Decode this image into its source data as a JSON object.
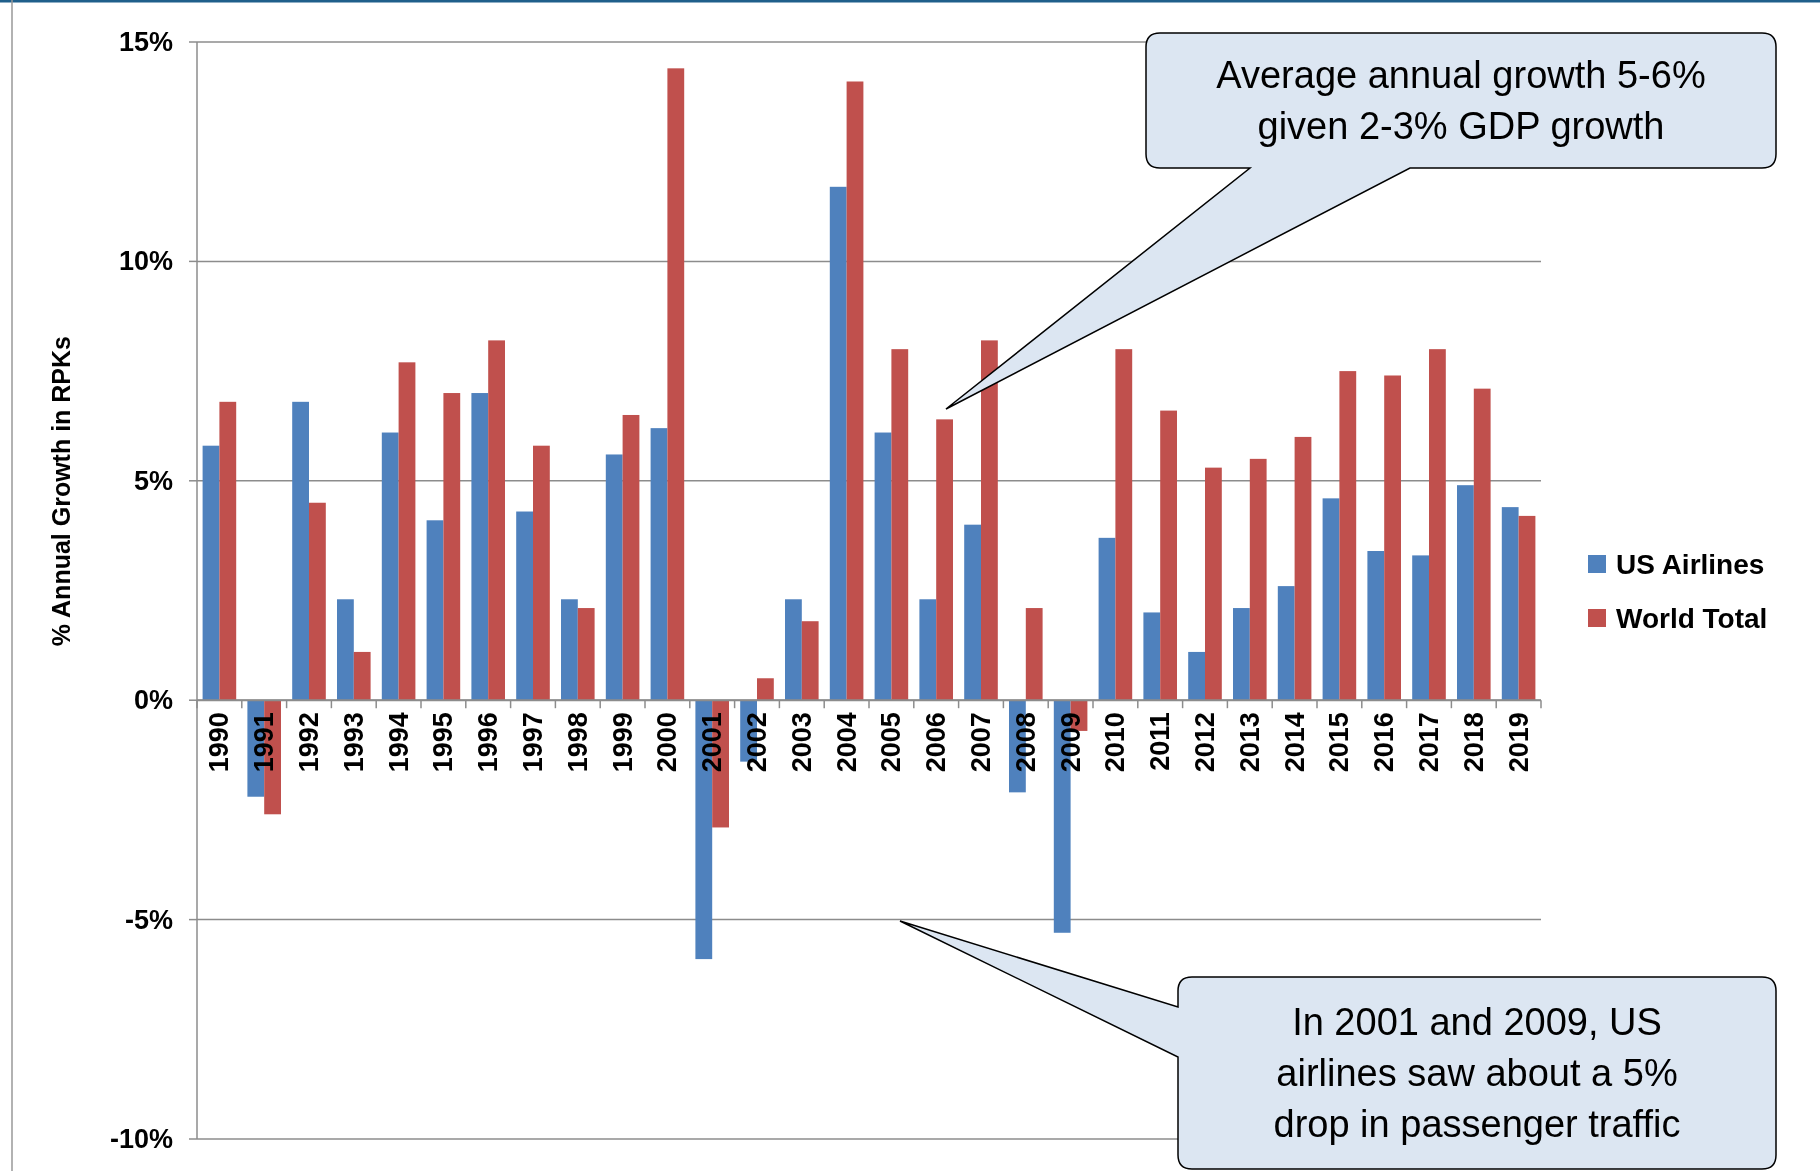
{
  "chart_data": {
    "type": "bar",
    "ylabel": "% Annual Growth in RPKs",
    "categories": [
      "1990",
      "1991",
      "1992",
      "1993",
      "1994",
      "1995",
      "1996",
      "1997",
      "1998",
      "1999",
      "2000",
      "2001",
      "2002",
      "2003",
      "2004",
      "2005",
      "2006",
      "2007",
      "2008",
      "2009",
      "2010",
      "2011",
      "2012",
      "2013",
      "2014",
      "2015",
      "2016",
      "2017",
      "2018",
      "2019"
    ],
    "series": [
      {
        "name": "US Airlines",
        "color": "#4f81bd",
        "values": [
          5.8,
          -2.2,
          6.8,
          2.3,
          6.1,
          4.1,
          7.0,
          4.3,
          2.3,
          5.6,
          6.2,
          -5.9,
          -1.4,
          2.3,
          11.7,
          6.1,
          2.3,
          4.0,
          -2.1,
          -5.3,
          3.7,
          2.0,
          1.1,
          2.1,
          2.6,
          4.6,
          3.4,
          3.3,
          4.9,
          4.4
        ]
      },
      {
        "name": "World Total",
        "color": "#c0504d",
        "values": [
          6.8,
          -2.6,
          4.5,
          1.1,
          7.7,
          7.0,
          8.2,
          5.8,
          2.1,
          6.5,
          14.4,
          -2.9,
          0.5,
          1.8,
          14.1,
          8.0,
          6.4,
          8.2,
          2.1,
          -0.7,
          8.0,
          6.6,
          5.3,
          5.5,
          6.0,
          7.5,
          7.4,
          8.0,
          7.1,
          4.2
        ]
      }
    ],
    "ylim": [
      -10,
      15
    ],
    "yticks": [
      {
        "value": -10,
        "label": "-10%"
      },
      {
        "value": -5,
        "label": "-5%"
      },
      {
        "value": 0,
        "label": "0%"
      },
      {
        "value": 5,
        "label": "5%"
      },
      {
        "value": 10,
        "label": "10%"
      },
      {
        "value": 15,
        "label": "15%"
      }
    ],
    "grid": "y",
    "legend": "right",
    "annotations": [
      "Average annual growth 5-6% given 2-3% GDP growth",
      "In 2001 and 2009, US airlines saw about a 5% drop in passenger traffic"
    ]
  }
}
